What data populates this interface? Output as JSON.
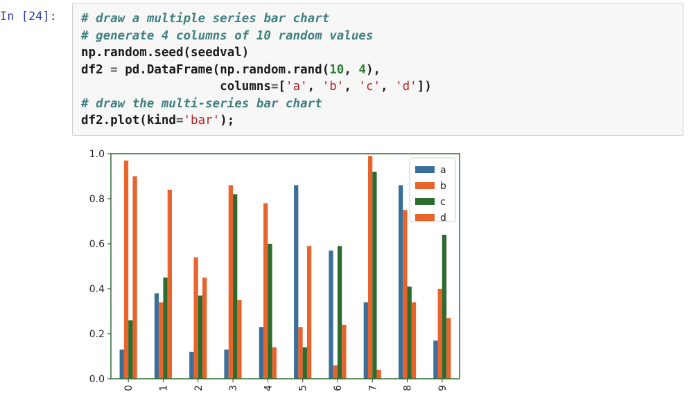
{
  "cell": {
    "prompt": "In [24]:",
    "lines": [
      [
        {
          "t": "comment",
          "v": "# draw a multiple series bar chart"
        }
      ],
      [
        {
          "t": "comment",
          "v": "# generate 4 columns of 10 random values"
        }
      ],
      [
        {
          "t": "plain",
          "v": "np.random.seed(seedval)"
        }
      ],
      [
        {
          "t": "plain",
          "v": "df2 "
        },
        {
          "t": "eq",
          "v": "="
        },
        {
          "t": "plain",
          "v": " pd.DataFrame(np.random.rand("
        },
        {
          "t": "num",
          "v": "10"
        },
        {
          "t": "plain",
          "v": ", "
        },
        {
          "t": "num",
          "v": "4"
        },
        {
          "t": "plain",
          "v": "),"
        }
      ],
      [
        {
          "t": "plain",
          "v": "                   columns"
        },
        {
          "t": "eq",
          "v": "="
        },
        {
          "t": "plain",
          "v": "["
        },
        {
          "t": "str",
          "v": "'a'"
        },
        {
          "t": "plain",
          "v": ", "
        },
        {
          "t": "str",
          "v": "'b'"
        },
        {
          "t": "plain",
          "v": ", "
        },
        {
          "t": "str",
          "v": "'c'"
        },
        {
          "t": "plain",
          "v": ", "
        },
        {
          "t": "str",
          "v": "'d'"
        },
        {
          "t": "plain",
          "v": "])"
        }
      ],
      [
        {
          "t": "comment",
          "v": "# draw the multi-series bar chart"
        }
      ],
      [
        {
          "t": "plain",
          "v": "df2.plot(kind"
        },
        {
          "t": "eq",
          "v": "="
        },
        {
          "t": "str",
          "v": "'bar'"
        },
        {
          "t": "plain",
          "v": ");"
        }
      ]
    ]
  },
  "chart_data": {
    "type": "bar",
    "categories": [
      "0",
      "1",
      "2",
      "3",
      "4",
      "5",
      "6",
      "7",
      "8",
      "9"
    ],
    "series": [
      {
        "name": "a",
        "color": "#3a6f9a",
        "values": [
          0.13,
          0.38,
          0.12,
          0.13,
          0.23,
          0.86,
          0.57,
          0.34,
          0.86,
          0.17
        ]
      },
      {
        "name": "b",
        "color": "#e8642c",
        "values": [
          0.97,
          0.34,
          0.54,
          0.86,
          0.78,
          0.23,
          0.06,
          0.99,
          0.75,
          0.4
        ]
      },
      {
        "name": "c",
        "color": "#2e6b2e",
        "values": [
          0.26,
          0.45,
          0.37,
          0.82,
          0.6,
          0.14,
          0.59,
          0.92,
          0.41,
          0.64
        ]
      },
      {
        "name": "d",
        "color": "#e8642c",
        "values": [
          0.9,
          0.84,
          0.45,
          0.35,
          0.14,
          0.59,
          0.24,
          0.04,
          0.34,
          0.27
        ]
      }
    ],
    "yticks": [
      "0.0",
      "0.2",
      "0.4",
      "0.6",
      "0.8",
      "1.0"
    ],
    "ylim": [
      0,
      1.0
    ],
    "legend": "top-right",
    "grid": false,
    "frame_color": "#2e6b2e",
    "xtick_rotation": "vertical"
  }
}
